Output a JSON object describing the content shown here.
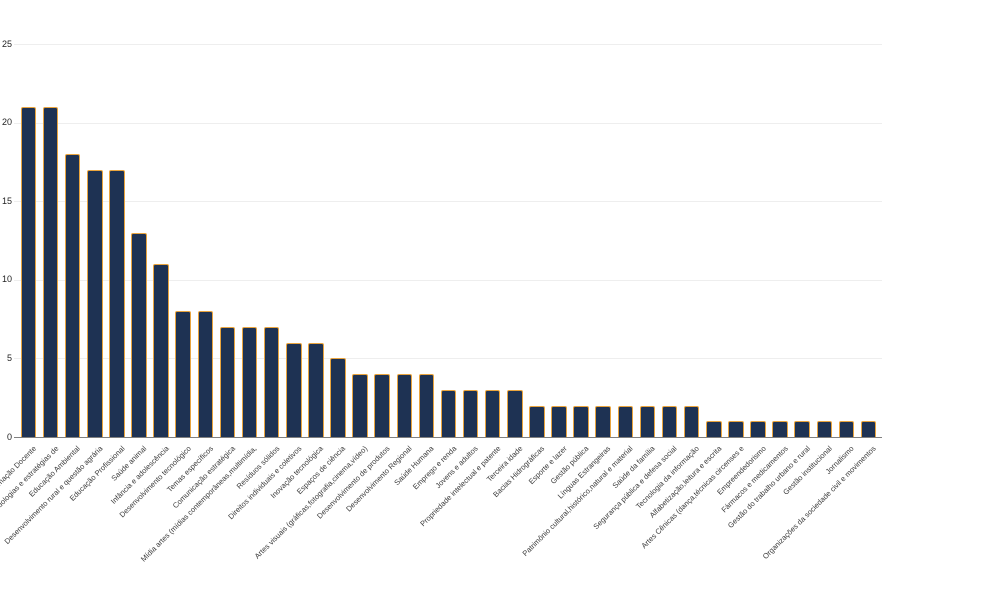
{
  "chart_data": {
    "type": "bar",
    "title": "",
    "xlabel": "",
    "ylabel": "",
    "legend": "none",
    "grid": true,
    "ylim": [
      0,
      25
    ],
    "yticks": [
      0,
      5,
      10,
      15,
      20,
      25
    ],
    "categories": [
      "Formação Docente",
      "Metodologias e estratégias de",
      "Educação Ambiental",
      "Desenvolvimento rural e questão agrária",
      "Educação Profissional",
      "Saúde animal",
      "Infância e adolescência",
      "Desenvolvimento tecnológico",
      "Temas específicos",
      "Comunicação estratégica",
      "Mídia artes (mídias contemporâneas,multimídia,",
      "Resíduos sólidos",
      "Direitos individuais e coletivos",
      "Inovação tecnológica",
      "Espaços de ciência",
      "Artes visuais (gráficas,fotografia,cinema,vídeo)",
      "Desenvolvimento de produtos",
      "Desenvolvimento Regional",
      "Saúde Humana",
      "Emprego e renda",
      "Jovens e adultos",
      "Propriedade intelectual e patente",
      "Terceira idade",
      "Bacias Hidrográficas",
      "Esporte e lazer",
      "Gestão pública",
      "Línguas Estrangeiras",
      "Patrimônio cultural,histórico,natural e material",
      "Saúde da família",
      "Segurança pública e defesa social",
      "Tecnologia da informação",
      "Alfabetização,leitura e escrita",
      "Artes Cênicas (dança,técnicas circenses e",
      "Empreendedorismo",
      "Fármacos e medicamentos",
      "Gestão do trabalho urbano e rural",
      "Gestão institucional",
      "Jornalismo",
      "Organizações da sociedade civil e movimentos"
    ],
    "values": [
      21,
      21,
      18,
      17,
      17,
      13,
      11,
      8,
      8,
      7,
      7,
      7,
      6,
      6,
      5,
      4,
      4,
      4,
      4,
      3,
      3,
      3,
      3,
      2,
      2,
      2,
      2,
      2,
      2,
      2,
      2,
      1,
      1,
      1,
      1,
      1,
      1,
      1,
      1
    ],
    "colors": {
      "bar_fill": "#1e3253",
      "bar_border": "#e9a43e",
      "gridline": "#eeeeee",
      "axis_line": "#808080",
      "tick_text": "#222222",
      "label_text": "#3b3b3b",
      "background": "#ffffff"
    }
  }
}
